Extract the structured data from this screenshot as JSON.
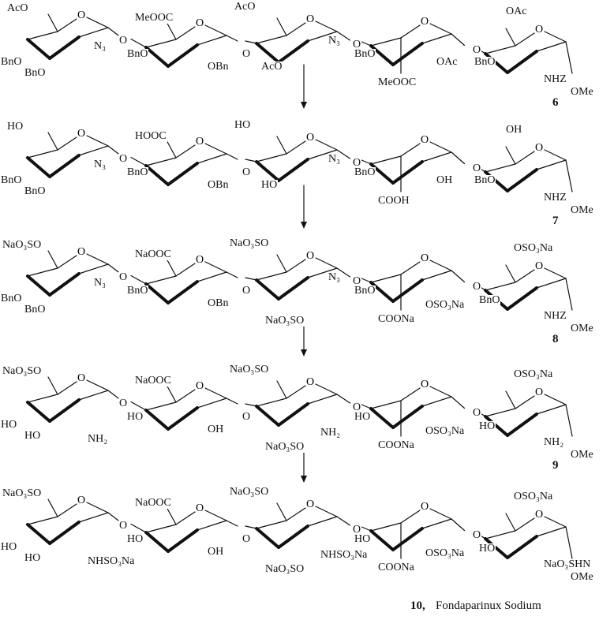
{
  "ring_oxygen": "O",
  "rows": [
    {
      "compound": "6",
      "labels": [
        "AcO",
        "N₃",
        "BnO",
        "BnO",
        "O",
        "MeOOC",
        "BnO",
        "OBn",
        "O",
        "AcO",
        "AcO",
        "N₃",
        "O",
        "BnO",
        "MeOOC",
        "OAc",
        "O",
        "OAc",
        "BnO",
        "NHZ",
        "OMe"
      ]
    },
    {
      "compound": "7",
      "labels": [
        "HO",
        "N₃",
        "BnO",
        "BnO",
        "O",
        "HOOC",
        "BnO",
        "OBn",
        "O",
        "HO",
        "HO",
        "N₃",
        "O",
        "BnO",
        "COOH",
        "OH",
        "O",
        "OH",
        "BnO",
        "NHZ",
        "OMe"
      ]
    },
    {
      "compound": "8",
      "labels": [
        "NaO₃SO",
        "N₃",
        "BnO",
        "BnO",
        "O",
        "NaOOC",
        "BnO",
        "OBn",
        "O",
        "NaO₃SO",
        "NaO₃SO",
        "N₃",
        "O",
        "BnO",
        "COONa",
        "OSO₃Na",
        "O",
        "OSO₃Na",
        "BnO",
        "NHZ",
        "OMe"
      ]
    },
    {
      "compound": "9",
      "labels": [
        "NaO₃SO",
        "NH₂",
        "HO",
        "HO",
        "O",
        "NaOOC",
        "HO",
        "OH",
        "O",
        "NaO₃SO",
        "NaO₃SO",
        "NH₂",
        "O",
        "HO",
        "COONa",
        "OSO₃Na",
        "O",
        "OSO₃Na",
        "HO",
        "NH₂",
        "OMe"
      ]
    },
    {
      "compound": "10,",
      "name": "Fondaparinux Sodium",
      "labels": [
        "NaO₃SO",
        "NHSO₃Na",
        "HO",
        "HO",
        "O",
        "NaOOC",
        "HO",
        "OH",
        "O",
        "NaO₃SO",
        "NaO₃SO",
        "NHSO₃Na",
        "O",
        "HO",
        "COONa",
        "OSO₃Na",
        "O",
        "OSO₃Na",
        "HO",
        "NaO₃SHN",
        "OMe"
      ]
    }
  ],
  "arrow_count": 4
}
